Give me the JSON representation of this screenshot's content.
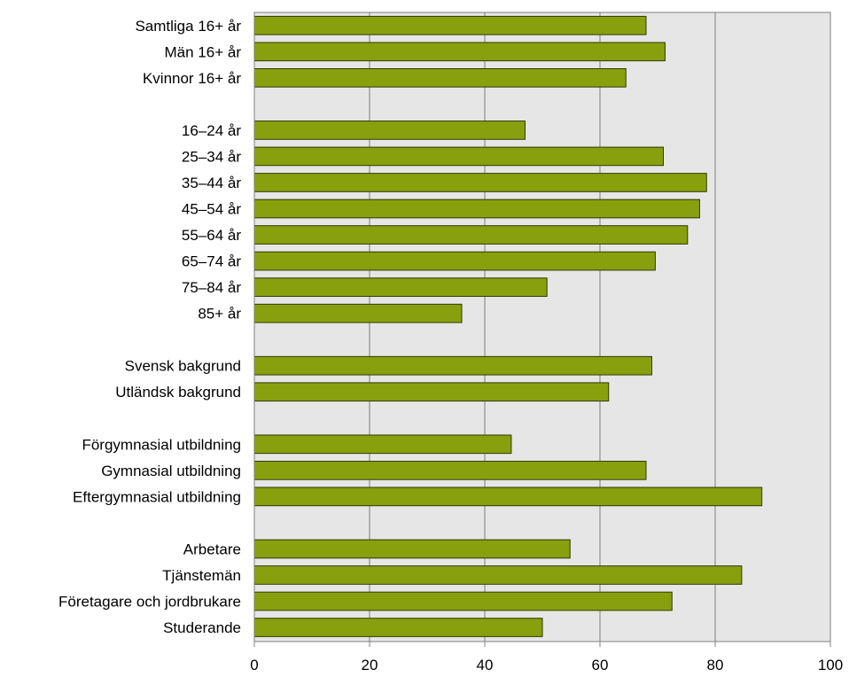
{
  "chart_data": {
    "type": "bar",
    "orientation": "horizontal",
    "title": "",
    "xlabel": "",
    "ylabel": "",
    "xlim": [
      0,
      100
    ],
    "xticks": [
      "0",
      "20",
      "40",
      "60",
      "80",
      "100"
    ],
    "grid": true,
    "colors": {
      "bar": "#88a00e",
      "bar_edge": "#2e3a00",
      "plot_bg": "#e6e6e6",
      "grid": "#7f7f7f"
    },
    "groups": [
      {
        "categories": [
          "Samtliga 16+ år",
          "Män 16+ år",
          "Kvinnor 16+ år"
        ],
        "values": [
          68,
          71.3,
          64.5
        ]
      },
      {
        "categories": [
          "16–24 år",
          "25–34 år",
          "35–44 år",
          "45–54 år",
          "55–64 år",
          "65–74 år",
          "75–84 år",
          "85+ år"
        ],
        "values": [
          47,
          71,
          78.5,
          77.3,
          75.2,
          69.6,
          50.8,
          36
        ]
      },
      {
        "categories": [
          "Svensk bakgrund",
          "Utländsk bakgrund"
        ],
        "values": [
          69,
          61.5
        ]
      },
      {
        "categories": [
          "Förgymnasial utbildning",
          "Gymnasial utbildning",
          "Eftergymnasial utbildning"
        ],
        "values": [
          44.6,
          68,
          88.1
        ]
      },
      {
        "categories": [
          "Arbetare",
          "Tjänstemän",
          "Företagare och jordbrukare",
          "Studerande"
        ],
        "values": [
          54.8,
          84.6,
          72.5,
          50
        ]
      }
    ]
  }
}
